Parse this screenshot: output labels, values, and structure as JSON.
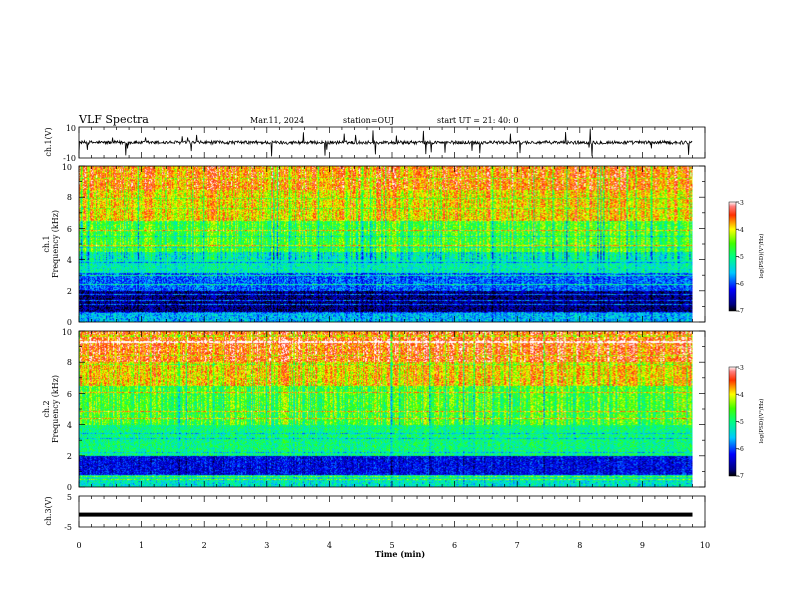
{
  "header": {
    "title": "VLF Spectra",
    "date": "Mar.11, 2024",
    "station": "station=OUJ",
    "start": "start  UT  =   21: 40: 0"
  },
  "chart_data": [
    {
      "panel": "ch1-waveform",
      "type": "line",
      "ylabel": "ch.1(V)",
      "ylim": [
        -10,
        10
      ],
      "yticks": [
        "10",
        "-10"
      ],
      "xlim": [
        0,
        10
      ],
      "trace_end_min": 9.8,
      "baseline_v": 0,
      "color": "#000000"
    },
    {
      "panel": "ch1-spectrogram",
      "type": "heatmap",
      "ylabel_top": "ch.1",
      "ylabel": "Frequency (kHz)",
      "ylim": [
        0,
        10
      ],
      "yticks": [
        "0",
        "2",
        "4",
        "6",
        "8",
        "10"
      ],
      "xlim": [
        0,
        10
      ],
      "data_end_min": 9.8,
      "colorbar": {
        "label": "log(PSD)(V²/Hz)",
        "range": [
          -7,
          -3
        ],
        "ticks": [
          "-3",
          "-4",
          "-5",
          "-6",
          "-7"
        ]
      },
      "bands": [
        {
          "f0": 0.0,
          "f1": 0.6,
          "log_psd": -5.6
        },
        {
          "f0": 0.6,
          "f1": 2.0,
          "log_psd": -6.7
        },
        {
          "f0": 2.0,
          "f1": 3.2,
          "log_psd": -5.9
        },
        {
          "f0": 3.2,
          "f1": 4.5,
          "log_psd": -5.2
        },
        {
          "f0": 4.5,
          "f1": 6.5,
          "log_psd": -4.6
        },
        {
          "f0": 6.5,
          "f1": 8.5,
          "log_psd": -3.9
        },
        {
          "f0": 8.5,
          "f1": 10.0,
          "log_psd": -3.6
        }
      ]
    },
    {
      "panel": "ch2-spectrogram",
      "type": "heatmap",
      "ylabel_top": "ch.2",
      "ylabel": "Frequency (kHz)",
      "ylim": [
        0,
        10
      ],
      "yticks": [
        "0",
        "2",
        "4",
        "6",
        "8",
        "10"
      ],
      "xlim": [
        0,
        10
      ],
      "data_end_min": 9.8,
      "colorbar": {
        "label": "log(PSD)(V²/Hz)",
        "range": [
          -7,
          -3
        ],
        "ticks": [
          "-3",
          "-4",
          "-5",
          "-6",
          "-7"
        ]
      },
      "bands": [
        {
          "f0": 0.0,
          "f1": 0.8,
          "log_psd": -5.3
        },
        {
          "f0": 0.8,
          "f1": 2.0,
          "log_psd": -6.3
        },
        {
          "f0": 2.0,
          "f1": 4.0,
          "log_psd": -5.0
        },
        {
          "f0": 4.0,
          "f1": 6.5,
          "log_psd": -4.6
        },
        {
          "f0": 6.5,
          "f1": 8.0,
          "log_psd": -3.9
        },
        {
          "f0": 8.0,
          "f1": 10.0,
          "log_psd": -3.5
        }
      ]
    },
    {
      "panel": "ch3-waveform",
      "type": "line",
      "ylabel": "ch.3(V)",
      "ylim": [
        -5,
        5
      ],
      "yticks": [
        "5",
        "-5"
      ],
      "xlim": [
        0,
        10
      ],
      "trace_end_min": 9.8,
      "baseline_v": -1,
      "color": "#000000"
    }
  ],
  "xaxis": {
    "label": "Time (min)",
    "ticks": [
      "0",
      "1",
      "2",
      "3",
      "4",
      "5",
      "6",
      "7",
      "8",
      "9",
      "10"
    ]
  }
}
